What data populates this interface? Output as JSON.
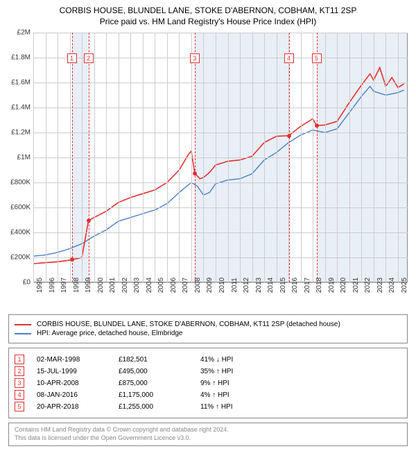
{
  "title_line1": "CORBIS HOUSE, BLUNDEL LANE, STOKE D'ABERNON, COBHAM, KT11 2SP",
  "title_line2": "Price paid vs. HM Land Registry's House Price Index (HPI)",
  "chart": {
    "type": "line",
    "x_min": 1995,
    "x_max": 2025.8,
    "y_min": 0,
    "y_max": 2000000,
    "y_ticks": [
      0,
      200000,
      400000,
      600000,
      800000,
      1000000,
      1200000,
      1400000,
      1600000,
      1800000,
      2000000
    ],
    "y_tick_labels": [
      "£0",
      "£200K",
      "£400K",
      "£600K",
      "£800K",
      "£1M",
      "£1.2M",
      "£1.4M",
      "£1.6M",
      "£1.8M",
      "£2M"
    ],
    "x_ticks": [
      1995,
      1996,
      1997,
      1998,
      1999,
      2000,
      2001,
      2002,
      2003,
      2004,
      2005,
      2006,
      2007,
      2008,
      2009,
      2010,
      2011,
      2012,
      2013,
      2014,
      2015,
      2016,
      2017,
      2018,
      2019,
      2020,
      2021,
      2022,
      2023,
      2024,
      2025
    ],
    "plot_bg": "#ffffff",
    "grid_color": "#cccccc",
    "border_color": "#888888",
    "band_color": "#e0e8f4",
    "bands": [
      [
        1998.17,
        1999.54
      ],
      [
        2008.28,
        2016.02
      ],
      [
        2018.3,
        2025.8
      ]
    ],
    "label_fontsize": 10,
    "series_red": {
      "color": "#e03030",
      "width": 1.6,
      "points": [
        [
          1995.0,
          150000
        ],
        [
          1996.0,
          158000
        ],
        [
          1997.0,
          165000
        ],
        [
          1998.0,
          178000
        ],
        [
          1998.17,
          182501
        ],
        [
          1998.17,
          182501
        ],
        [
          1998.6,
          190000
        ],
        [
          1999.0,
          200000
        ],
        [
          1999.54,
          495000
        ],
        [
          1999.54,
          495000
        ],
        [
          2000.0,
          520000
        ],
        [
          2001.0,
          570000
        ],
        [
          2002.0,
          640000
        ],
        [
          2003.0,
          680000
        ],
        [
          2004.0,
          710000
        ],
        [
          2005.0,
          740000
        ],
        [
          2006.0,
          800000
        ],
        [
          2007.0,
          900000
        ],
        [
          2007.8,
          1030000
        ],
        [
          2008.0,
          1050000
        ],
        [
          2008.28,
          875000
        ],
        [
          2008.28,
          875000
        ],
        [
          2008.7,
          830000
        ],
        [
          2009.0,
          840000
        ],
        [
          2009.5,
          880000
        ],
        [
          2010.0,
          940000
        ],
        [
          2011.0,
          970000
        ],
        [
          2012.0,
          980000
        ],
        [
          2013.0,
          1010000
        ],
        [
          2014.0,
          1120000
        ],
        [
          2015.0,
          1170000
        ],
        [
          2016.02,
          1175000
        ],
        [
          2016.02,
          1175000
        ],
        [
          2017.0,
          1250000
        ],
        [
          2018.0,
          1310000
        ],
        [
          2018.3,
          1255000
        ],
        [
          2018.3,
          1255000
        ],
        [
          2019.0,
          1260000
        ],
        [
          2020.0,
          1290000
        ],
        [
          2021.0,
          1440000
        ],
        [
          2022.0,
          1580000
        ],
        [
          2022.7,
          1670000
        ],
        [
          2023.0,
          1620000
        ],
        [
          2023.5,
          1720000
        ],
        [
          2024.0,
          1570000
        ],
        [
          2024.5,
          1640000
        ],
        [
          2025.0,
          1560000
        ],
        [
          2025.5,
          1590000
        ]
      ]
    },
    "series_blue": {
      "color": "#4a7fc8",
      "width": 1.4,
      "points": [
        [
          1995.0,
          210000
        ],
        [
          1996.0,
          220000
        ],
        [
          1997.0,
          240000
        ],
        [
          1998.0,
          270000
        ],
        [
          1999.0,
          310000
        ],
        [
          2000.0,
          370000
        ],
        [
          2001.0,
          420000
        ],
        [
          2002.0,
          490000
        ],
        [
          2003.0,
          520000
        ],
        [
          2004.0,
          550000
        ],
        [
          2005.0,
          580000
        ],
        [
          2006.0,
          630000
        ],
        [
          2007.0,
          720000
        ],
        [
          2008.0,
          800000
        ],
        [
          2008.5,
          770000
        ],
        [
          2009.0,
          700000
        ],
        [
          2009.5,
          720000
        ],
        [
          2010.0,
          790000
        ],
        [
          2011.0,
          820000
        ],
        [
          2012.0,
          830000
        ],
        [
          2013.0,
          870000
        ],
        [
          2014.0,
          980000
        ],
        [
          2015.0,
          1040000
        ],
        [
          2016.0,
          1120000
        ],
        [
          2017.0,
          1180000
        ],
        [
          2018.0,
          1220000
        ],
        [
          2019.0,
          1200000
        ],
        [
          2020.0,
          1230000
        ],
        [
          2021.0,
          1360000
        ],
        [
          2022.0,
          1490000
        ],
        [
          2022.7,
          1570000
        ],
        [
          2023.0,
          1530000
        ],
        [
          2024.0,
          1500000
        ],
        [
          2025.0,
          1520000
        ],
        [
          2025.5,
          1540000
        ]
      ]
    },
    "tx_markers": [
      {
        "n": "1",
        "x": 1998.17,
        "y": 182501
      },
      {
        "n": "2",
        "x": 1999.54,
        "y": 495000
      },
      {
        "n": "3",
        "x": 2008.28,
        "y": 875000
      },
      {
        "n": "4",
        "x": 2016.02,
        "y": 1175000
      },
      {
        "n": "5",
        "x": 2018.3,
        "y": 1255000
      }
    ],
    "marker_y": 30
  },
  "legend": {
    "s1": {
      "color": "#e03030",
      "label": "CORBIS HOUSE, BLUNDEL LANE, STOKE D'ABERNON, COBHAM, KT11 2SP (detached house)"
    },
    "s2": {
      "color": "#4a7fc8",
      "label": "HPI: Average price, detached house, Elmbridge"
    }
  },
  "tx_table": {
    "box_color": "#e03030",
    "rows": [
      {
        "n": "1",
        "date": "02-MAR-1998",
        "price": "£182,501",
        "delta": "41% ↓ HPI"
      },
      {
        "n": "2",
        "date": "15-JUL-1999",
        "price": "£495,000",
        "delta": "35% ↑ HPI"
      },
      {
        "n": "3",
        "date": "10-APR-2008",
        "price": "£875,000",
        "delta": "9% ↑ HPI"
      },
      {
        "n": "4",
        "date": "08-JAN-2016",
        "price": "£1,175,000",
        "delta": "4% ↑ HPI"
      },
      {
        "n": "5",
        "date": "20-APR-2018",
        "price": "£1,255,000",
        "delta": "11% ↑ HPI"
      }
    ]
  },
  "footer_l1": "Contains HM Land Registry data © Crown copyright and database right 2024.",
  "footer_l2": "This data is licensed under the Open Government Licence v3.0."
}
